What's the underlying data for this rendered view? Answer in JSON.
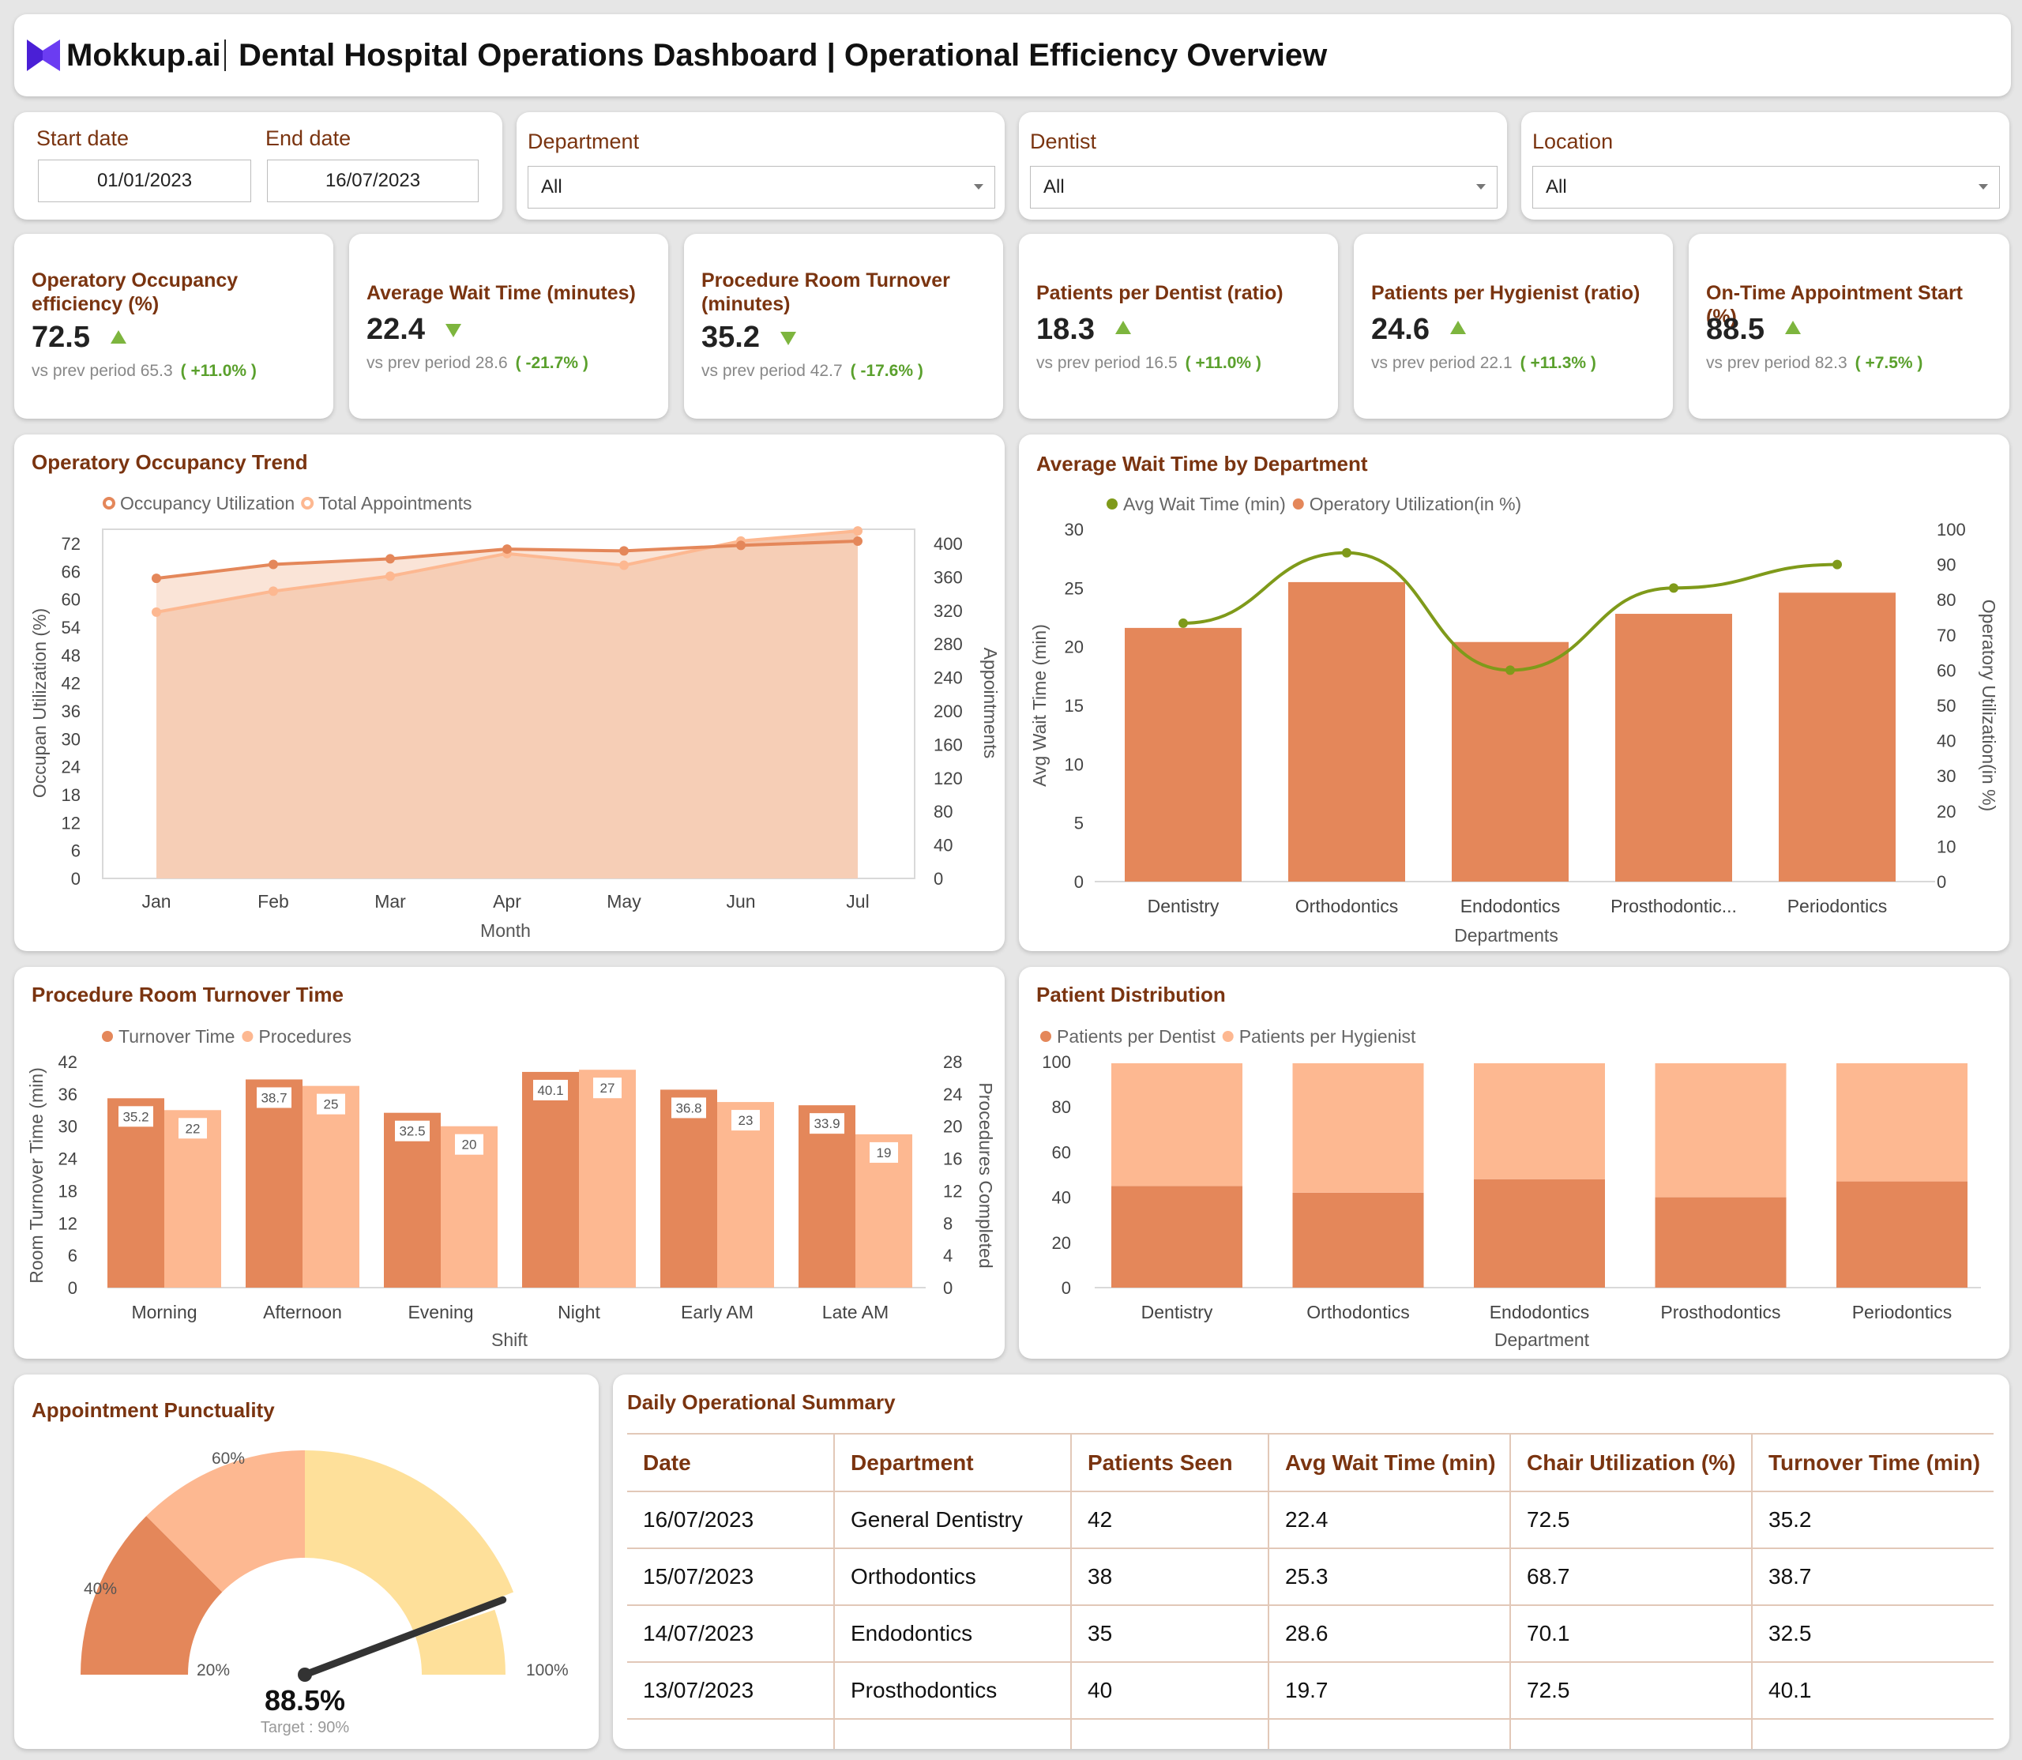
{
  "header": {
    "brand": "Mokkup.ai",
    "title": "Dental Hospital Operations Dashboard | Operational Efficiency Overview"
  },
  "filters": {
    "start_label": "Start date",
    "start_value": "01/01/2023",
    "end_label": "End date",
    "end_value": "16/07/2023",
    "department_label": "Department",
    "department_value": "All",
    "dentist_label": "Dentist",
    "dentist_value": "All",
    "location_label": "Location",
    "location_value": "All"
  },
  "kpis": [
    {
      "title": "Operatory Occupancy efficiency (%)",
      "value": "72.5",
      "direction": "up",
      "prev_label": "vs prev period",
      "prev_value": "65.3",
      "delta": "( +11.0% )"
    },
    {
      "title": "Average Wait Time (minutes)",
      "value": "22.4",
      "direction": "down",
      "prev_label": "vs prev period",
      "prev_value": "28.6",
      "delta": "( -21.7% )"
    },
    {
      "title": "Procedure Room Turnover (minutes)",
      "value": "35.2",
      "direction": "down",
      "prev_label": "vs prev period",
      "prev_value": "42.7",
      "delta": "( -17.6% )"
    },
    {
      "title": "Patients per Dentist (ratio)",
      "value": "18.3",
      "direction": "up",
      "prev_label": "vs prev period",
      "prev_value": "16.5",
      "delta": "( +11.0% )"
    },
    {
      "title": "Patients per Hygienist (ratio)",
      "value": "24.6",
      "direction": "up",
      "prev_label": "vs prev period",
      "prev_value": "22.1",
      "delta": "( +11.3% )"
    },
    {
      "title": "On-Time Appointment Start (%)",
      "value": "88.5",
      "direction": "up",
      "prev_label": "vs prev period",
      "prev_value": "82.3",
      "delta": "( +7.5% )"
    }
  ],
  "colors": {
    "brand": "#7a3410",
    "orange": "#e4875a",
    "peach": "#fdb891",
    "olive": "#7f9a1a",
    "up_arrow": "#7db53e",
    "gauge_dark": "#e4875a",
    "gauge_mid": "#fdb891",
    "gauge_light": "#fee09a"
  },
  "occupancy_chart": {
    "title": "Operatory Occupancy Trend",
    "legend": [
      "Occupancy Utilization",
      "Total Appointments"
    ]
  },
  "wait_chart": {
    "title": "Average Wait Time by Department",
    "legend": [
      "Avg Wait Time (min)",
      "Operatory Utilization(in %)"
    ]
  },
  "turnover_chart": {
    "title": "Procedure Room Turnover Time",
    "legend": [
      "Turnover Time",
      "Procedures"
    ]
  },
  "distribution_chart": {
    "title": "Patient Distribution",
    "legend": [
      "Patients per Dentist",
      "Patients per  Hygienist"
    ]
  },
  "punctuality": {
    "title": "Appointment Punctuality",
    "value_label": "88.5%",
    "value": 88.5,
    "target_label": "Target : 90%",
    "target": 90,
    "band_labels": [
      "20%",
      "40%",
      "60%",
      "100%"
    ]
  },
  "summary": {
    "title": "Daily Operational Summary",
    "columns": [
      "Date",
      "Department",
      "Patients Seen",
      "Avg Wait Time (min)",
      "Chair Utilization (%)",
      "Turnover Time (min)"
    ],
    "rows": [
      [
        "16/07/2023",
        "General Dentistry",
        "42",
        "22.4",
        "72.5",
        "35.2"
      ],
      [
        "15/07/2023",
        "Orthodontics",
        "38",
        "25.3",
        "68.7",
        "38.7"
      ],
      [
        "14/07/2023",
        "Endodontics",
        "35",
        "28.6",
        "70.1",
        "32.5"
      ],
      [
        "13/07/2023",
        "Prosthodontics",
        "40",
        "19.7",
        "72.5",
        "40.1"
      ]
    ]
  },
  "chart_data": [
    {
      "type": "area",
      "title": "Operatory Occupancy Trend",
      "xlabel": "Month",
      "ylabel": "Occupan Utilization (%)",
      "y2label": "Appointments",
      "categories": [
        "Jan",
        "Feb",
        "Mar",
        "Apr",
        "May",
        "Jun",
        "Jul"
      ],
      "ylim": [
        0,
        72
      ],
      "yticks": [
        0,
        6,
        12,
        18,
        24,
        30,
        36,
        42,
        48,
        54,
        60,
        66,
        72
      ],
      "y2lim": [
        0,
        400
      ],
      "y2ticks": [
        0,
        40,
        80,
        120,
        160,
        200,
        240,
        280,
        320,
        360,
        400
      ],
      "series": [
        {
          "name": "Occupancy Utilization",
          "axis": "left",
          "values": [
            64.5,
            67.5,
            68.7,
            70.8,
            70.4,
            71.6,
            72.5
          ]
        },
        {
          "name": "Total Appointments",
          "axis": "right",
          "values": [
            318,
            343,
            361,
            388,
            374,
            403,
            415
          ]
        }
      ],
      "legend": "top"
    },
    {
      "type": "bar",
      "title": "Average Wait Time by Department",
      "xlabel": "Departments",
      "ylabel": "Avg Wait Time (min)",
      "y2label": "Operatory Utilization(in %)",
      "categories": [
        "Dentistry",
        "Orthodontics",
        "Endodontics",
        "Prosthodontic...",
        "Periodontics"
      ],
      "ylim": [
        0,
        30
      ],
      "yticks": [
        0,
        5,
        10,
        15,
        20,
        25,
        30
      ],
      "y2lim": [
        0,
        100
      ],
      "y2ticks": [
        0,
        10,
        20,
        30,
        40,
        50,
        60,
        70,
        80,
        90,
        100
      ],
      "series": [
        {
          "name": "Operatory Utilization(in %)",
          "kind": "bar",
          "axis": "right",
          "values": [
            72,
            85,
            68,
            76,
            82
          ]
        },
        {
          "name": "Avg Wait Time (min)",
          "kind": "line",
          "axis": "left",
          "values": [
            22,
            28,
            18,
            25,
            27
          ]
        }
      ],
      "legend": "top"
    },
    {
      "type": "bar",
      "title": "Procedure Room Turnover Time",
      "xlabel": "Shift",
      "ylabel": "Room Turnover Time (min)",
      "y2label": "Procedures Completed",
      "categories": [
        "Morning",
        "Afternoon",
        "Evening",
        "Night",
        "Early AM",
        "Late AM"
      ],
      "ylim": [
        0,
        42
      ],
      "yticks": [
        0,
        6,
        12,
        18,
        24,
        30,
        36,
        42
      ],
      "y2lim": [
        0,
        28
      ],
      "y2ticks": [
        0,
        4,
        8,
        12,
        16,
        20,
        24,
        28
      ],
      "series": [
        {
          "name": "Turnover Time",
          "axis": "left",
          "values": [
            35.2,
            38.7,
            32.5,
            40.1,
            36.8,
            33.9
          ]
        },
        {
          "name": "Procedures",
          "axis": "right",
          "values": [
            22,
            25,
            20,
            27,
            23,
            19
          ]
        }
      ],
      "legend": "top"
    },
    {
      "type": "bar",
      "stacked": true,
      "title": "Patient Distribution",
      "xlabel": "Department",
      "categories": [
        "Dentistry",
        "Orthodontics",
        "Endodontics",
        "Prosthodontics",
        "Periodontics"
      ],
      "ylim": [
        0,
        100
      ],
      "yticks": [
        0,
        20,
        40,
        60,
        80,
        100
      ],
      "series": [
        {
          "name": "Patients per Dentist",
          "values": [
            45,
            42,
            48,
            40,
            47
          ]
        },
        {
          "name": "Patients per  Hygienist",
          "values": [
            55,
            58,
            52,
            60,
            53
          ]
        }
      ],
      "legend": "top"
    }
  ]
}
